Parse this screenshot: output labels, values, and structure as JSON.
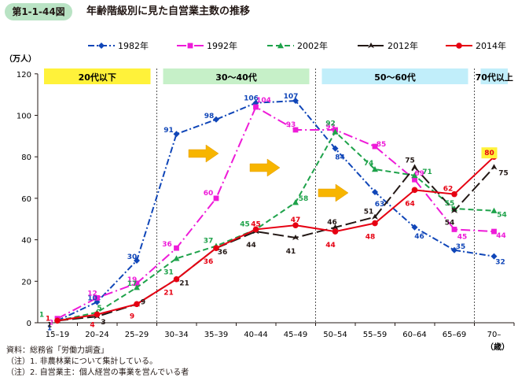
{
  "header": {
    "figure_no": "第1-1-44図",
    "title": "年齢階級別に見た自営業主数の推移"
  },
  "notes": [
    "資料：総務省「労働力調査」",
    "（注）1. 非農林業について集計している。",
    "（注）2. 自営業主：個人経営の事業を営んでいる者"
  ],
  "chart_data": {
    "type": "line",
    "ylabel": "（万人）",
    "xlabel": "（歳）",
    "ylim": [
      0,
      120
    ],
    "yticks": [
      0,
      20,
      40,
      60,
      80,
      100,
      120
    ],
    "categories": [
      "15–19",
      "20–24",
      "25–29",
      "30–34",
      "35–39",
      "40–44",
      "45–49",
      "50–54",
      "55–59",
      "60–64",
      "65–69",
      "70–"
    ],
    "grid": false,
    "legend_position": "top",
    "age_groups": [
      {
        "label": "20代以下",
        "color": "#fff23a"
      },
      {
        "label": "30〜40代",
        "color": "#c6f0c8"
      },
      {
        "label": "50〜60代",
        "color": "#c1eefa"
      },
      {
        "label": "70代以上",
        "color": "#c1eefa"
      }
    ],
    "series": [
      {
        "name": "1982年",
        "color": "#1046b8",
        "dash": "dashdot",
        "marker": "diamond",
        "values": [
          1,
          10,
          30,
          91,
          98,
          106,
          107,
          84,
          63,
          46,
          35,
          32
        ]
      },
      {
        "name": "1992年",
        "color": "#ee1bd8",
        "dash": "dashdotlong",
        "marker": "square",
        "values": [
          2,
          12,
          19,
          36,
          60,
          104,
          93,
          93,
          85,
          69,
          45,
          44
        ]
      },
      {
        "name": "2002年",
        "color": "#1ea24a",
        "dash": "dashed",
        "marker": "triangle",
        "values": [
          1,
          5,
          17,
          31,
          37,
          45,
          58,
          92,
          74,
          71,
          55,
          54
        ]
      },
      {
        "name": "2012年",
        "color": "#231815",
        "dash": "longdash",
        "marker": "arrowhead",
        "values": [
          1,
          3,
          9,
          21,
          36,
          44,
          41,
          46,
          51,
          75,
          54,
          75
        ]
      },
      {
        "name": "2014年",
        "color": "#e60012",
        "dash": "solid",
        "marker": "circle",
        "values": [
          1,
          4,
          9,
          21,
          36,
          45,
          47,
          44,
          48,
          64,
          62,
          80
        ]
      }
    ]
  }
}
